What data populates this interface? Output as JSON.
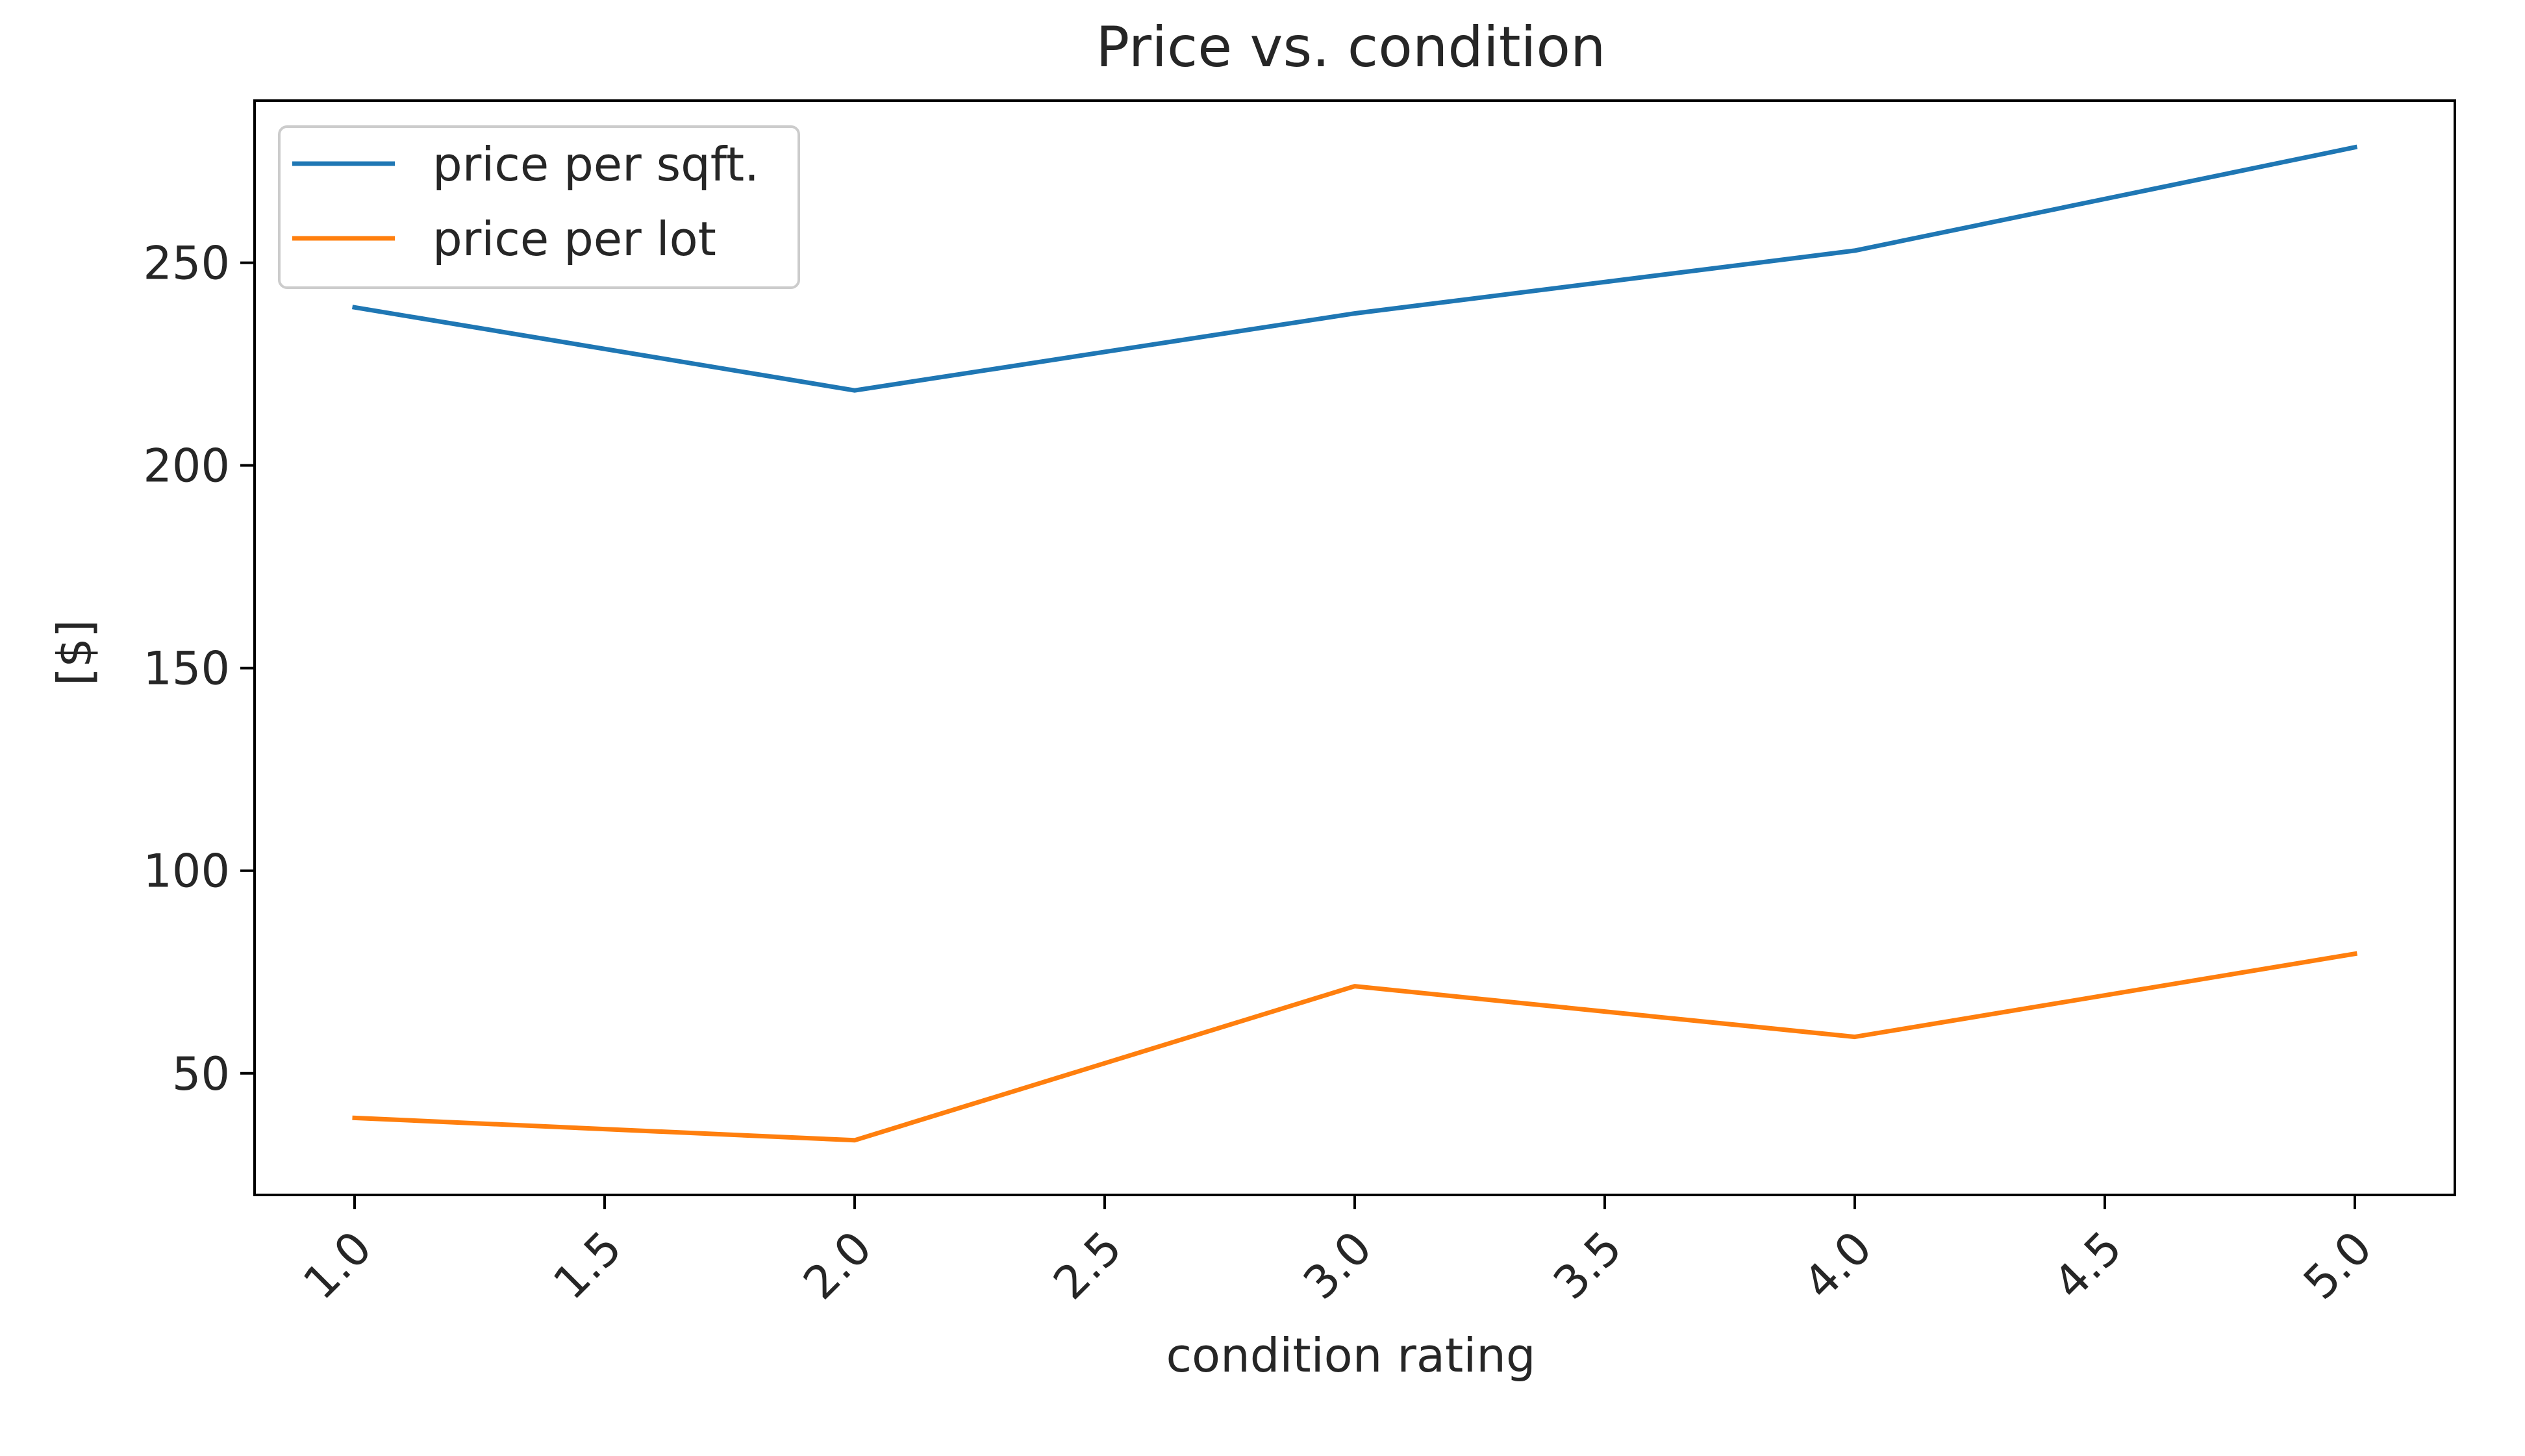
{
  "chart_data": {
    "type": "line",
    "title": "Price vs. condition",
    "xlabel": "condition rating",
    "ylabel": "[$]",
    "x": [
      1,
      2,
      3,
      4,
      5
    ],
    "xlim": [
      0.8,
      5.2
    ],
    "ylim": [
      20,
      290
    ],
    "xticks": [
      1.0,
      1.5,
      2.0,
      2.5,
      3.0,
      3.5,
      4.0,
      4.5,
      5.0
    ],
    "xtick_labels": [
      "1.0",
      "1.5",
      "2.0",
      "2.5",
      "3.0",
      "3.5",
      "4.0",
      "4.5",
      "5.0"
    ],
    "xtick_rotation": 45,
    "yticks": [
      50,
      100,
      150,
      200,
      250
    ],
    "ytick_labels": [
      "50",
      "100",
      "150",
      "200",
      "250"
    ],
    "grid": false,
    "legend_position": "top-left",
    "series": [
      {
        "name": "price per sqft.",
        "color": "#1f77b4",
        "values": [
          239,
          218.5,
          237.5,
          253,
          278.5
        ]
      },
      {
        "name": "price per lot",
        "color": "#ff7f0e",
        "values": [
          39,
          33.5,
          71.5,
          59,
          79.5
        ]
      }
    ]
  }
}
